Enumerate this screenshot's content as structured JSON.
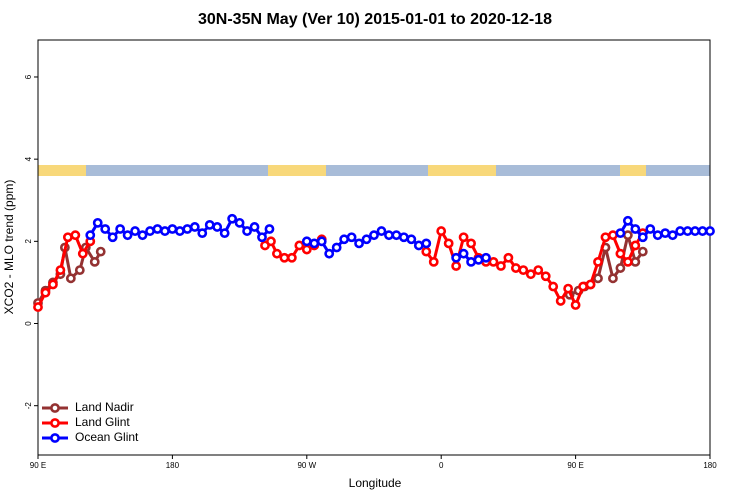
{
  "chart_data": {
    "type": "line",
    "title": "30N-35N May (Ver 10)   2015-01-01 to 2020-12-18",
    "x_label": "Longitude",
    "y_label": "XCO2 - MLO trend (ppm)",
    "xlim": [
      90,
      540
    ],
    "xticks": [
      {
        "value": 90,
        "label": "90 E"
      },
      180,
      {
        "value": 270,
        "label": "90 W"
      },
      {
        "value": 360,
        "label": "0"
      },
      {
        "value": 450,
        "label": "90 E"
      },
      {
        "value": 540,
        "label": "180"
      }
    ],
    "ylim": [
      -3.2,
      6.9
    ],
    "yticks": [
      -2,
      0,
      2,
      4,
      6
    ],
    "legend": "bottom-left",
    "series": [
      {
        "name": "Land Nadir",
        "color": "#943232",
        "x": [
          90,
          95,
          100,
          105,
          108,
          112,
          118,
          122,
          128,
          132,
          null,
          446,
          452,
          456,
          460,
          465,
          470,
          475,
          480,
          485,
          490,
          495
        ],
        "values": [
          0.5,
          0.8,
          1.0,
          1.2,
          1.85,
          1.1,
          1.3,
          1.85,
          1.5,
          1.75,
          null,
          0.7,
          0.8,
          0.9,
          0.95,
          1.1,
          1.85,
          1.1,
          1.35,
          2.15,
          1.5,
          1.75
        ]
      },
      {
        "name": "Land Glint",
        "color": "#ff0000",
        "x": [
          90,
          95,
          100,
          105,
          110,
          115,
          120,
          125,
          null,
          242,
          246,
          250,
          255,
          260,
          265,
          270,
          275,
          280,
          null,
          350,
          355,
          360,
          365,
          370,
          375,
          380,
          385,
          390,
          395,
          400,
          405,
          410,
          415,
          420,
          425,
          430,
          435,
          440,
          445,
          450,
          455,
          460,
          465,
          470,
          475,
          480,
          485,
          490,
          495
        ],
        "values": [
          0.4,
          0.75,
          0.95,
          1.3,
          2.1,
          2.15,
          1.7,
          2.0,
          null,
          1.9,
          2.0,
          1.7,
          1.6,
          1.6,
          1.9,
          1.8,
          1.9,
          2.05,
          null,
          1.75,
          1.5,
          2.25,
          1.95,
          1.4,
          2.1,
          1.95,
          1.6,
          1.5,
          1.5,
          1.4,
          1.6,
          1.35,
          1.3,
          1.2,
          1.3,
          1.15,
          0.9,
          0.55,
          0.85,
          0.45,
          0.9,
          0.95,
          1.5,
          2.1,
          2.15,
          1.7,
          1.5,
          1.9,
          2.2
        ]
      },
      {
        "name": "Ocean Glint",
        "color": "#0000ff",
        "x": [
          125,
          130,
          135,
          140,
          145,
          150,
          155,
          160,
          165,
          170,
          175,
          180,
          185,
          190,
          195,
          200,
          205,
          210,
          215,
          220,
          225,
          230,
          235,
          240,
          245,
          null,
          270,
          275,
          280,
          285,
          290,
          295,
          300,
          305,
          310,
          315,
          320,
          325,
          330,
          335,
          340,
          345,
          350,
          null,
          370,
          375,
          380,
          385,
          390,
          null,
          480,
          485,
          490,
          495,
          500,
          505,
          510,
          515,
          520,
          525,
          530,
          535,
          540
        ],
        "values": [
          2.15,
          2.45,
          2.3,
          2.1,
          2.3,
          2.15,
          2.25,
          2.15,
          2.25,
          2.3,
          2.25,
          2.3,
          2.25,
          2.3,
          2.35,
          2.2,
          2.4,
          2.35,
          2.2,
          2.55,
          2.45,
          2.25,
          2.35,
          2.1,
          2.3,
          null,
          2.0,
          1.95,
          2.0,
          1.7,
          1.85,
          2.05,
          2.1,
          1.95,
          2.05,
          2.15,
          2.25,
          2.15,
          2.15,
          2.1,
          2.05,
          1.9,
          1.95,
          null,
          1.6,
          1.7,
          1.5,
          1.55,
          1.6,
          null,
          2.2,
          2.5,
          2.3,
          2.1,
          2.3,
          2.15,
          2.2,
          2.15,
          2.25,
          2.25,
          2.25,
          2.25,
          2.25
        ]
      }
    ]
  }
}
